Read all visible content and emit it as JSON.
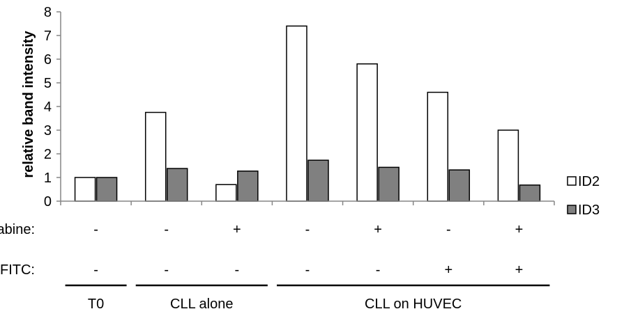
{
  "chart_data": {
    "type": "bar",
    "title": "",
    "xlabel": "",
    "ylabel": "relative band intensity",
    "ylim": [
      0,
      8
    ],
    "yticks": [
      "0",
      "1",
      "2",
      "3",
      "4",
      "5",
      "6",
      "7",
      "8"
    ],
    "grid": false,
    "legend_position": "right",
    "series": [
      {
        "name": "ID2",
        "color": "#ffffff",
        "values": [
          1.0,
          3.75,
          0.7,
          7.4,
          5.8,
          4.6,
          3.0
        ]
      },
      {
        "name": "ID3",
        "color": "#808080",
        "values": [
          1.0,
          1.38,
          1.27,
          1.73,
          1.43,
          1.32,
          0.68
        ]
      }
    ],
    "conditions": [
      {
        "label": "Fludarabine:",
        "values": [
          "-",
          "-",
          "+",
          "-",
          "+",
          "-",
          "+"
        ]
      },
      {
        "label": "FITC:",
        "values": [
          "-",
          "-",
          "-",
          "-",
          "-",
          "+",
          "+"
        ]
      }
    ],
    "groups": [
      {
        "label": "T0",
        "from": 0,
        "to": 0
      },
      {
        "label": "CLL alone",
        "from": 1,
        "to": 2
      },
      {
        "label": "CLL on HUVEC",
        "from": 3,
        "to": 6
      }
    ]
  }
}
